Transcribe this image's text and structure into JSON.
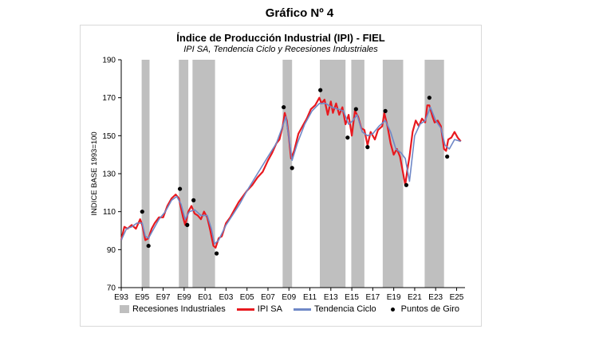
{
  "figure_label": "Gráfico Nº 4",
  "chart_data": {
    "type": "line",
    "title": "Índice de Producción Industrial (IPI) - FIEL",
    "subtitle": "IPI SA, Tendencia Ciclo y Recesiones Industriales",
    "ylabel": "INDICE BASE 1993=100",
    "xlabel": "",
    "ylim": [
      70,
      190
    ],
    "yticks": [
      70,
      90,
      110,
      130,
      150,
      170,
      190
    ],
    "xlim": [
      1993.0,
      2025.8
    ],
    "xticks": [
      {
        "label": "E93",
        "x": 1993
      },
      {
        "label": "E95",
        "x": 1995
      },
      {
        "label": "E97",
        "x": 1997
      },
      {
        "label": "E99",
        "x": 1999
      },
      {
        "label": "E01",
        "x": 2001
      },
      {
        "label": "E03",
        "x": 2003
      },
      {
        "label": "E05",
        "x": 2005
      },
      {
        "label": "E07",
        "x": 2007
      },
      {
        "label": "E09",
        "x": 2009
      },
      {
        "label": "E11",
        "x": 2011
      },
      {
        "label": "E13",
        "x": 2013
      },
      {
        "label": "E15",
        "x": 2015
      },
      {
        "label": "E17",
        "x": 2017
      },
      {
        "label": "E19",
        "x": 2019
      },
      {
        "label": "E21",
        "x": 2021
      },
      {
        "label": "E23",
        "x": 2023
      },
      {
        "label": "E25",
        "x": 2025
      }
    ],
    "recessions": [
      [
        1994.95,
        1995.7
      ],
      [
        1998.5,
        1999.4
      ],
      [
        1999.8,
        2001.95
      ],
      [
        2008.4,
        2009.3
      ],
      [
        2011.95,
        2014.4
      ],
      [
        2014.95,
        2016.2
      ],
      [
        2017.95,
        2019.9
      ],
      [
        2021.95,
        2023.8
      ]
    ],
    "series": [
      {
        "name": "IPI SA",
        "color": "#e8191f",
        "x": [
          1993.0,
          1993.3,
          1993.6,
          1994.0,
          1994.4,
          1994.8,
          1995.0,
          1995.3,
          1995.6,
          1995.9,
          1996.2,
          1996.6,
          1997.0,
          1997.4,
          1997.8,
          1998.2,
          1998.5,
          1998.7,
          1998.9,
          1999.1,
          1999.4,
          1999.7,
          2000.0,
          2000.3,
          2000.6,
          2000.9,
          2001.2,
          2001.5,
          2001.8,
          2002.0,
          2002.3,
          2002.6,
          2003.0,
          2003.4,
          2003.8,
          2004.2,
          2004.6,
          2005.0,
          2005.5,
          2006.0,
          2006.5,
          2007.0,
          2007.4,
          2007.8,
          2008.1,
          2008.4,
          2008.6,
          2008.8,
          2009.0,
          2009.2,
          2009.5,
          2009.9,
          2010.3,
          2010.7,
          2011.1,
          2011.5,
          2011.9,
          2012.1,
          2012.4,
          2012.7,
          2013.0,
          2013.2,
          2013.5,
          2013.8,
          2014.1,
          2014.4,
          2014.7,
          2015.0,
          2015.3,
          2015.6,
          2015.9,
          2016.2,
          2016.5,
          2016.8,
          2017.2,
          2017.5,
          2017.9,
          2018.1,
          2018.4,
          2018.7,
          2019.0,
          2019.3,
          2019.6,
          2019.9,
          2020.1,
          2020.3,
          2020.5,
          2020.8,
          2021.1,
          2021.4,
          2021.7,
          2022.0,
          2022.2,
          2022.4,
          2022.7,
          2022.9,
          2023.2,
          2023.5,
          2023.8,
          2024.0,
          2024.2,
          2024.5,
          2024.8,
          2025.1,
          2025.4
        ],
        "y": [
          95,
          102,
          101,
          103,
          101,
          106,
          103,
          95,
          96,
          101,
          104,
          107,
          107,
          113,
          117,
          119,
          117,
          112,
          107,
          103,
          110,
          113,
          109,
          108,
          106,
          110,
          107,
          100,
          92,
          91,
          96,
          97,
          104,
          107,
          111,
          115,
          118,
          121,
          124,
          128,
          131,
          137,
          141,
          146,
          148,
          155,
          162,
          158,
          149,
          138,
          142,
          151,
          155,
          159,
          164,
          166,
          170,
          167,
          169,
          161,
          168,
          162,
          167,
          161,
          165,
          156,
          161,
          150,
          163,
          160,
          154,
          153,
          145,
          152,
          148,
          153,
          155,
          162,
          155,
          146,
          140,
          143,
          139,
          130,
          124,
          132,
          139,
          152,
          158,
          155,
          159,
          157,
          166,
          166,
          160,
          157,
          158,
          155,
          143,
          142,
          148,
          149,
          152,
          149,
          147
        ]
      },
      {
        "name": "Tendencia Ciclo",
        "color": "#6f88c7",
        "x": [
          1993.0,
          1993.5,
          1994.0,
          1994.5,
          1995.0,
          1995.3,
          1995.6,
          1996.0,
          1996.6,
          1997.2,
          1997.8,
          1998.3,
          1998.7,
          1999.1,
          1999.5,
          2000.0,
          2000.6,
          2001.2,
          2001.6,
          2001.9,
          2002.3,
          2003.0,
          2003.6,
          2004.3,
          2005.0,
          2006.0,
          2007.0,
          2007.8,
          2008.4,
          2008.7,
          2009.0,
          2009.3,
          2009.8,
          2010.5,
          2011.2,
          2011.9,
          2012.5,
          2013.1,
          2013.7,
          2014.2,
          2014.7,
          2015.1,
          2015.5,
          2016.0,
          2016.5,
          2017.0,
          2017.6,
          2018.2,
          2018.7,
          2019.2,
          2019.7,
          2020.1,
          2020.5,
          2021.0,
          2021.5,
          2022.0,
          2022.5,
          2023.0,
          2023.5,
          2023.9,
          2024.3,
          2024.8,
          2025.4
        ],
        "y": [
          95,
          101,
          102,
          104,
          104,
          97,
          96,
          100,
          106,
          110,
          116,
          118,
          114,
          106,
          110,
          111,
          108,
          108,
          101,
          93,
          95,
          103,
          108,
          114,
          121,
          130,
          139,
          146,
          155,
          160,
          149,
          137,
          146,
          156,
          163,
          167,
          167,
          165,
          164,
          163,
          156,
          158,
          161,
          152,
          150,
          151,
          155,
          158,
          152,
          143,
          141,
          138,
          126,
          150,
          156,
          158,
          165,
          158,
          154,
          145,
          143,
          148,
          147
        ]
      }
    ],
    "turning_points": [
      {
        "x": 1995.0,
        "y": 110
      },
      {
        "x": 1995.6,
        "y": 92
      },
      {
        "x": 1998.6,
        "y": 122
      },
      {
        "x": 1999.3,
        "y": 103
      },
      {
        "x": 1999.9,
        "y": 116
      },
      {
        "x": 2002.1,
        "y": 88
      },
      {
        "x": 2008.5,
        "y": 165
      },
      {
        "x": 2009.3,
        "y": 133
      },
      {
        "x": 2012.0,
        "y": 174
      },
      {
        "x": 2014.6,
        "y": 149
      },
      {
        "x": 2015.4,
        "y": 164
      },
      {
        "x": 2016.5,
        "y": 144
      },
      {
        "x": 2018.2,
        "y": 163
      },
      {
        "x": 2020.2,
        "y": 124
      },
      {
        "x": 2022.4,
        "y": 170
      },
      {
        "x": 2024.1,
        "y": 139
      }
    ],
    "legend": {
      "position": "bottom",
      "items": [
        "Recesiones Industriales",
        "IPI SA",
        "Tendencia Ciclo",
        "Puntos de Giro"
      ],
      "colors": [
        "#bfbfbf",
        "#e8191f",
        "#6f88c7",
        "#000000"
      ]
    }
  }
}
